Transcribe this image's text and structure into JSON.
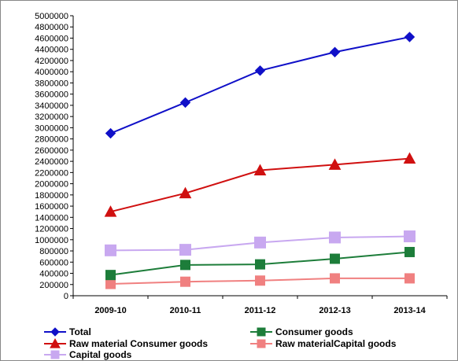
{
  "chart_data": {
    "type": "line",
    "title": "",
    "xlabel": "",
    "ylabel": "",
    "categories": [
      "2009-10",
      "2010-11",
      "2011-12",
      "2012-13",
      "2013-14"
    ],
    "ylim": [
      0,
      5000000
    ],
    "ytick_step": 200000,
    "yticks": [
      "0",
      "200000",
      "400000",
      "600000",
      "800000",
      "1000000",
      "1200000",
      "1400000",
      "1600000",
      "1800000",
      "2000000",
      "2200000",
      "2400000",
      "2600000",
      "2800000",
      "3000000",
      "3200000",
      "3400000",
      "3600000",
      "3800000",
      "4000000",
      "4200000",
      "4400000",
      "4600000",
      "4800000",
      "5000000"
    ],
    "grid": false,
    "legend_position": "bottom",
    "series": [
      {
        "key": "total",
        "name": "Total",
        "color": "#1010c8",
        "marker": "diamond",
        "values": [
          2900000,
          3450000,
          4020000,
          4350000,
          4620000
        ]
      },
      {
        "key": "consumer",
        "name": "Consumer goods",
        "color": "#1d7d3a",
        "marker": "square",
        "values": [
          370000,
          550000,
          560000,
          660000,
          780000
        ]
      },
      {
        "key": "raw_consumer",
        "name": "Raw material Consumer goods",
        "color": "#d01010",
        "marker": "triangle",
        "values": [
          1500000,
          1830000,
          2240000,
          2340000,
          2450000
        ]
      },
      {
        "key": "raw_capital",
        "name": "Raw materialCapital goods",
        "color": "#f08080",
        "marker": "square",
        "values": [
          210000,
          250000,
          270000,
          310000,
          310000
        ]
      },
      {
        "key": "capital",
        "name": "Capital goods",
        "color": "#c8a8f0",
        "marker": "square",
        "values": [
          810000,
          820000,
          950000,
          1040000,
          1060000
        ]
      }
    ]
  }
}
